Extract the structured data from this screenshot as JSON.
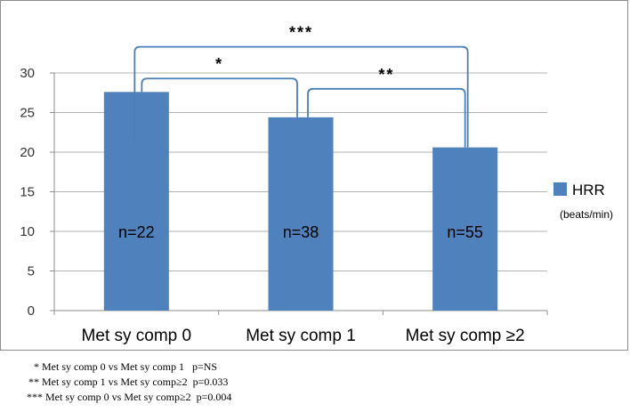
{
  "chart_data": {
    "type": "bar",
    "categories": [
      "Met sy comp 0",
      "Met sy comp 1",
      "Met sy comp ≥2"
    ],
    "series": [
      {
        "name": "HRR",
        "values": [
          27.6,
          24.4,
          20.6
        ],
        "color": "#4F81BD"
      }
    ],
    "n_labels": [
      "n=22",
      "n=38",
      "n=55"
    ],
    "ylim": [
      0,
      30
    ],
    "yticks": [
      0,
      5,
      10,
      15,
      20,
      25,
      30
    ],
    "grid": true,
    "legend": {
      "position": "right",
      "name": "HRR",
      "unit": "(beats/min)"
    },
    "significance": [
      {
        "label": "*",
        "from": 0,
        "to": 1,
        "bracket_value": 29.3
      },
      {
        "label": "**",
        "from": 1,
        "to": 2,
        "bracket_value": 28.0
      },
      {
        "label": "***",
        "from": 0,
        "to": 2,
        "bracket_value": 33.3
      }
    ],
    "bracket_color": "#4A7EBB"
  },
  "footnotes": [
    "* Met sy comp 0 vs Met sy comp 1   p=NS",
    "** Met sy comp 1 vs Met sy comp≥2  p=0.033",
    "*** Met sy comp 0 vs Met sy comp≥2  p=0.004"
  ]
}
